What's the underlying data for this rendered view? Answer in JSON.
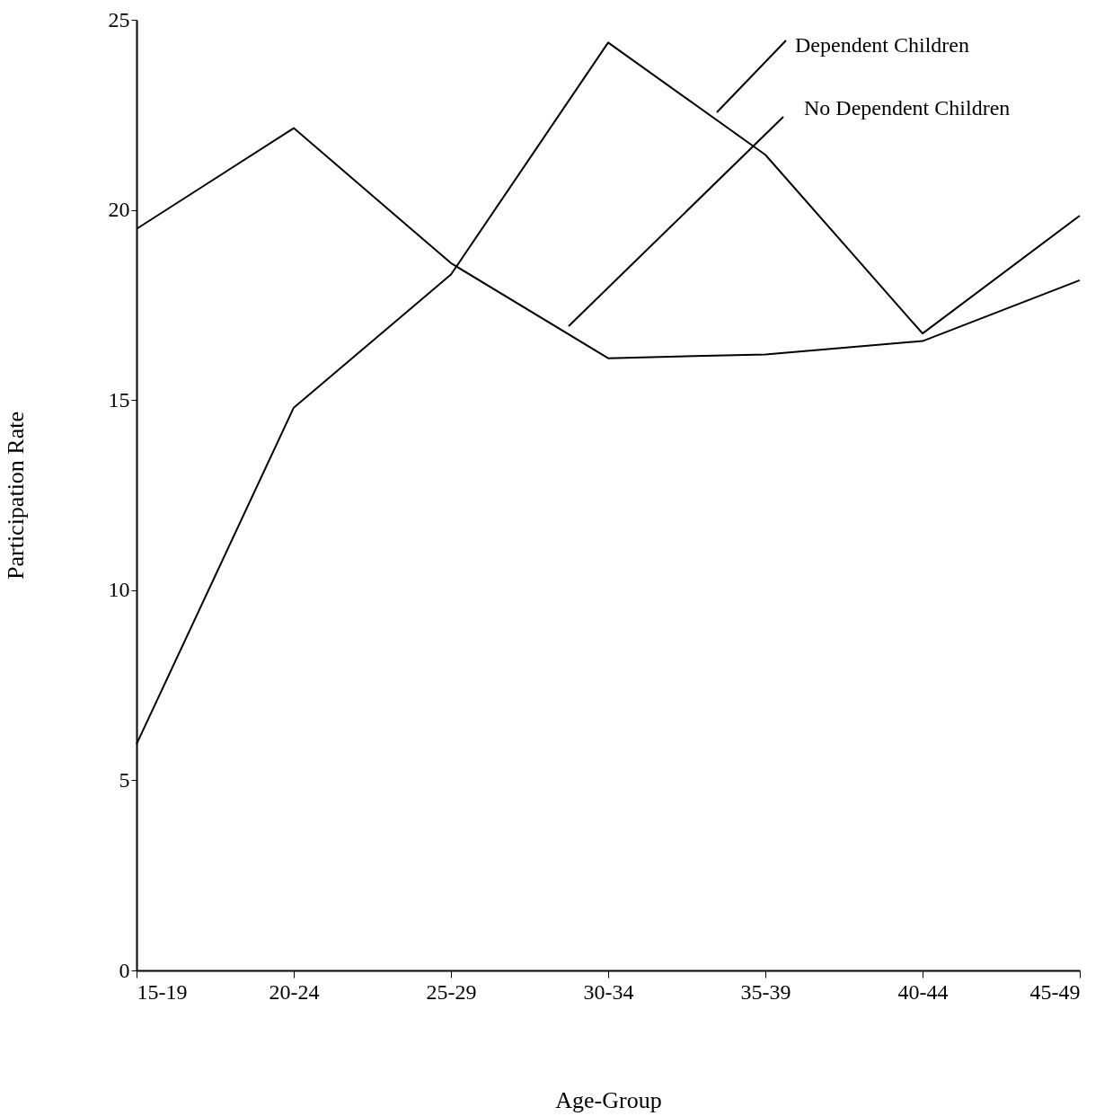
{
  "chart_data": {
    "type": "line",
    "xlabel": "Age-Group",
    "ylabel": "Participation Rate",
    "categories": [
      "15-19",
      "20-24",
      "25-29",
      "30-34",
      "35-39",
      "40-44",
      "45-49"
    ],
    "series": [
      {
        "name": "Dependent Children",
        "color": "#000000",
        "values": [
          5.95,
          14.8,
          18.3,
          24.4,
          21.45,
          16.75,
          19.85
        ]
      },
      {
        "name": "No Dependent Children",
        "color": "#000000",
        "values": [
          19.5,
          22.15,
          18.6,
          16.1,
          16.2,
          16.55,
          18.15
        ]
      }
    ],
    "ylim": [
      0,
      25
    ],
    "yticks": [
      0,
      5,
      10,
      15,
      20,
      25
    ],
    "grid": false,
    "legend": false,
    "marker": "none",
    "line_style": "solid"
  }
}
